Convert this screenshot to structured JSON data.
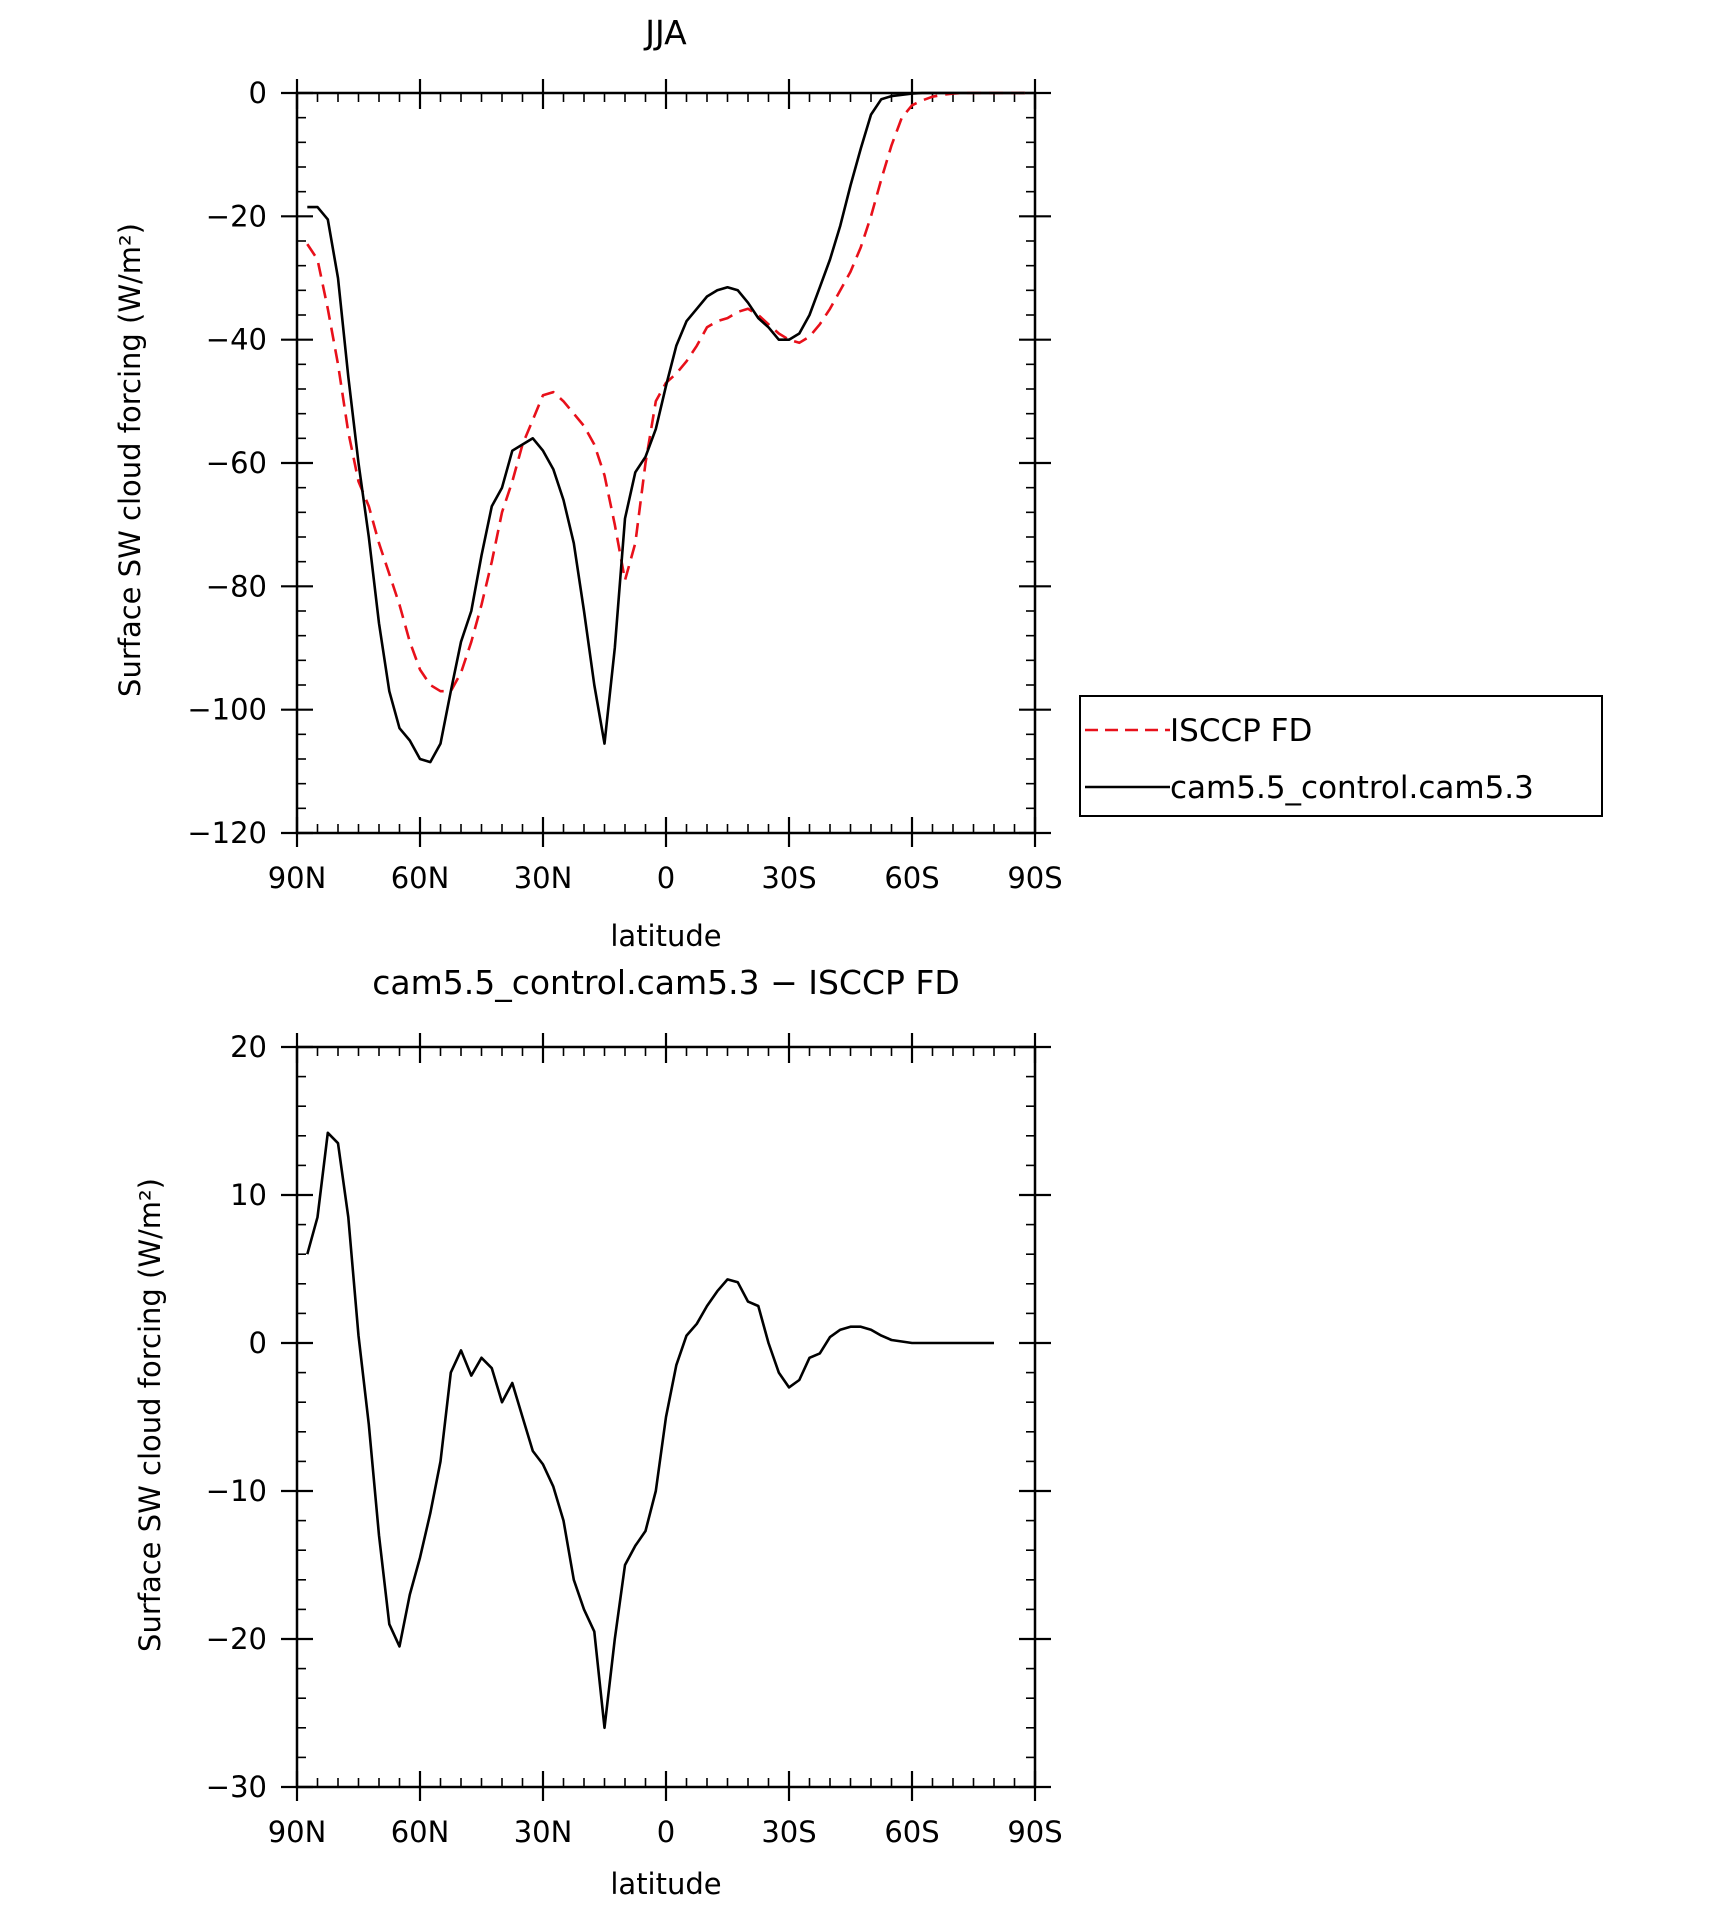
{
  "chart_data": [
    {
      "type": "line",
      "title": "JJA",
      "xlabel": "latitude",
      "ylabel": "Surface SW cloud forcing (W/m²)",
      "xlim": [
        -90,
        90
      ],
      "ylim": [
        -120,
        0
      ],
      "x_ticks": [
        {
          "value": -90,
          "label": "90N"
        },
        {
          "value": -60,
          "label": "60N"
        },
        {
          "value": -30,
          "label": "30N"
        },
        {
          "value": 0,
          "label": "0"
        },
        {
          "value": 30,
          "label": "30S"
        },
        {
          "value": 60,
          "label": "60S"
        },
        {
          "value": 90,
          "label": "90S"
        }
      ],
      "y_ticks": [
        {
          "value": 0,
          "label": "0"
        },
        {
          "value": -20,
          "label": "−20"
        },
        {
          "value": -40,
          "label": "−40"
        },
        {
          "value": -60,
          "label": "−60"
        },
        {
          "value": -80,
          "label": "−80"
        },
        {
          "value": -100,
          "label": "−100"
        },
        {
          "value": -120,
          "label": "−120"
        }
      ],
      "legend": "right",
      "series": [
        {
          "name": "ISCCP FD",
          "color": "#e8101a",
          "dash": "dashed",
          "points": [
            [
              -87.5,
              -24.5
            ],
            [
              -85,
              -27
            ],
            [
              -82.5,
              -35
            ],
            [
              -80,
              -44
            ],
            [
              -77.5,
              -55
            ],
            [
              -75,
              -63
            ],
            [
              -72.5,
              -67
            ],
            [
              -70,
              -73
            ],
            [
              -67.5,
              -78
            ],
            [
              -65,
              -83
            ],
            [
              -62.5,
              -89
            ],
            [
              -60,
              -93.5
            ],
            [
              -57.5,
              -96
            ],
            [
              -55,
              -97
            ],
            [
              -52.5,
              -97
            ],
            [
              -50,
              -94
            ],
            [
              -47.5,
              -89
            ],
            [
              -45,
              -83
            ],
            [
              -42.5,
              -76
            ],
            [
              -40,
              -68
            ],
            [
              -37.5,
              -63
            ],
            [
              -35,
              -57
            ],
            [
              -32.5,
              -53
            ],
            [
              -30,
              -49
            ],
            [
              -27.5,
              -48.5
            ],
            [
              -25,
              -50
            ],
            [
              -22.5,
              -52
            ],
            [
              -20,
              -54
            ],
            [
              -17.5,
              -57
            ],
            [
              -15,
              -62
            ],
            [
              -12.5,
              -70
            ],
            [
              -10,
              -79
            ],
            [
              -7.5,
              -73
            ],
            [
              -5,
              -60
            ],
            [
              -2.5,
              -50
            ],
            [
              0,
              -47
            ],
            [
              2.5,
              -45.5
            ],
            [
              5,
              -43.5
            ],
            [
              7.5,
              -41
            ],
            [
              10,
              -38
            ],
            [
              12.5,
              -37
            ],
            [
              15,
              -36.5
            ],
            [
              17.5,
              -35.5
            ],
            [
              20,
              -35
            ],
            [
              22.5,
              -36
            ],
            [
              25,
              -37.5
            ],
            [
              27.5,
              -39
            ],
            [
              30,
              -40
            ],
            [
              32.5,
              -40.5
            ],
            [
              35,
              -39.5
            ],
            [
              37.5,
              -37.5
            ],
            [
              40,
              -35
            ],
            [
              42.5,
              -32
            ],
            [
              45,
              -29
            ],
            [
              47.5,
              -25
            ],
            [
              50,
              -20
            ],
            [
              52.5,
              -14
            ],
            [
              55,
              -8.5
            ],
            [
              57.5,
              -4
            ],
            [
              60,
              -2
            ],
            [
              62.5,
              -1.2
            ],
            [
              65,
              -0.6
            ],
            [
              67.5,
              -0.3
            ],
            [
              70,
              -0.1
            ],
            [
              72.5,
              0
            ],
            [
              75,
              0
            ],
            [
              77.5,
              0
            ],
            [
              80,
              0
            ],
            [
              82.5,
              0
            ],
            [
              85,
              0
            ],
            [
              87.5,
              0
            ]
          ]
        },
        {
          "name": "cam5.5_control.cam5.3",
          "color": "#000000",
          "dash": "solid",
          "points": [
            [
              -87.5,
              -18.5
            ],
            [
              -85,
              -18.5
            ],
            [
              -82.5,
              -20.5
            ],
            [
              -80,
              -30
            ],
            [
              -77.5,
              -46
            ],
            [
              -75,
              -60
            ],
            [
              -72.5,
              -72
            ],
            [
              -70,
              -86
            ],
            [
              -67.5,
              -97
            ],
            [
              -65,
              -103
            ],
            [
              -62.5,
              -105
            ],
            [
              -60,
              -108
            ],
            [
              -57.5,
              -108.5
            ],
            [
              -55,
              -105.5
            ],
            [
              -52.5,
              -97
            ],
            [
              -50,
              -89
            ],
            [
              -47.5,
              -84
            ],
            [
              -45,
              -75
            ],
            [
              -42.5,
              -67
            ],
            [
              -40,
              -64
            ],
            [
              -37.5,
              -58
            ],
            [
              -35,
              -57
            ],
            [
              -32.5,
              -56
            ],
            [
              -30,
              -58
            ],
            [
              -27.5,
              -61
            ],
            [
              -25,
              -66
            ],
            [
              -22.5,
              -73
            ],
            [
              -20,
              -84
            ],
            [
              -17.5,
              -96
            ],
            [
              -15,
              -105.5
            ],
            [
              -12.5,
              -90
            ],
            [
              -10,
              -69
            ],
            [
              -7.5,
              -61.5
            ],
            [
              -5,
              -59
            ],
            [
              -2.5,
              -54.5
            ],
            [
              0,
              -47.5
            ],
            [
              2.5,
              -41
            ],
            [
              5,
              -37
            ],
            [
              7.5,
              -35
            ],
            [
              10,
              -33
            ],
            [
              12.5,
              -32
            ],
            [
              15,
              -31.5
            ],
            [
              17.5,
              -32
            ],
            [
              20,
              -34
            ],
            [
              22.5,
              -36.5
            ],
            [
              25,
              -38
            ],
            [
              27.5,
              -40
            ],
            [
              30,
              -40
            ],
            [
              32.5,
              -39
            ],
            [
              35,
              -36
            ],
            [
              37.5,
              -31.5
            ],
            [
              40,
              -27
            ],
            [
              42.5,
              -21.5
            ],
            [
              45,
              -15
            ],
            [
              47.5,
              -9
            ],
            [
              50,
              -3.5
            ],
            [
              52.5,
              -1
            ],
            [
              55,
              -0.5
            ],
            [
              57.5,
              -0.3
            ],
            [
              60,
              -0.1
            ],
            [
              62.5,
              0
            ],
            [
              65,
              0
            ],
            [
              67.5,
              0
            ],
            [
              70,
              0
            ],
            [
              72.5,
              0
            ],
            [
              75,
              0
            ],
            [
              77.5,
              0
            ],
            [
              80,
              0
            ],
            [
              82.5,
              0
            ],
            [
              85,
              0
            ],
            [
              87.5,
              0
            ]
          ]
        }
      ]
    },
    {
      "type": "line",
      "title": "cam5.5_control.cam5.3 − ISCCP FD",
      "xlabel": "latitude",
      "ylabel": "Surface SW cloud forcing (W/m²)",
      "xlim": [
        -90,
        90
      ],
      "ylim": [
        -30,
        20
      ],
      "x_ticks": [
        {
          "value": -90,
          "label": "90N"
        },
        {
          "value": -60,
          "label": "60N"
        },
        {
          "value": -30,
          "label": "30N"
        },
        {
          "value": 0,
          "label": "0"
        },
        {
          "value": 30,
          "label": "30S"
        },
        {
          "value": 60,
          "label": "60S"
        },
        {
          "value": 90,
          "label": "90S"
        }
      ],
      "y_ticks": [
        {
          "value": 20,
          "label": "20"
        },
        {
          "value": 10,
          "label": "10"
        },
        {
          "value": 0,
          "label": "0"
        },
        {
          "value": -10,
          "label": "−10"
        },
        {
          "value": -20,
          "label": "−20"
        },
        {
          "value": -30,
          "label": "−30"
        }
      ],
      "series": [
        {
          "color": "#000000",
          "dash": "solid",
          "points": [
            [
              -87.5,
              6
            ],
            [
              -85,
              8.5
            ],
            [
              -82.5,
              14.2
            ],
            [
              -80,
              13.5
            ],
            [
              -77.5,
              8.5
            ],
            [
              -75,
              0.5
            ],
            [
              -72.5,
              -5.5
            ],
            [
              -70,
              -13
            ],
            [
              -67.5,
              -19
            ],
            [
              -65,
              -20.5
            ],
            [
              -62.5,
              -17
            ],
            [
              -60,
              -14.5
            ],
            [
              -57.5,
              -11.5
            ],
            [
              -55,
              -8
            ],
            [
              -52.5,
              -2
            ],
            [
              -50,
              -0.5
            ],
            [
              -47.5,
              -2.2
            ],
            [
              -45,
              -1
            ],
            [
              -42.5,
              -1.7
            ],
            [
              -40,
              -4
            ],
            [
              -37.5,
              -2.7
            ],
            [
              -35,
              -5
            ],
            [
              -32.5,
              -7.3
            ],
            [
              -30,
              -8.2
            ],
            [
              -27.5,
              -9.7
            ],
            [
              -25,
              -12
            ],
            [
              -22.5,
              -16
            ],
            [
              -20,
              -18
            ],
            [
              -17.5,
              -19.5
            ],
            [
              -15,
              -26
            ],
            [
              -12.5,
              -20
            ],
            [
              -10,
              -15
            ],
            [
              -7.5,
              -13.7
            ],
            [
              -5,
              -12.7
            ],
            [
              -2.5,
              -10
            ],
            [
              0,
              -5
            ],
            [
              2.5,
              -1.5
            ],
            [
              5,
              0.5
            ],
            [
              7.5,
              1.3
            ],
            [
              10,
              2.5
            ],
            [
              12.5,
              3.5
            ],
            [
              15,
              4.3
            ],
            [
              17.5,
              4.1
            ],
            [
              20,
              2.8
            ],
            [
              22.5,
              2.5
            ],
            [
              25,
              0
            ],
            [
              27.5,
              -2
            ],
            [
              30,
              -3
            ],
            [
              32.5,
              -2.5
            ],
            [
              35,
              -1
            ],
            [
              37.5,
              -0.7
            ],
            [
              40,
              0.4
            ],
            [
              42.5,
              0.9
            ],
            [
              45,
              1.1
            ],
            [
              47.5,
              1.1
            ],
            [
              50,
              0.9
            ],
            [
              52.5,
              0.5
            ],
            [
              55,
              0.2
            ],
            [
              57.5,
              0.1
            ],
            [
              60,
              0
            ],
            [
              62.5,
              0
            ],
            [
              65,
              0
            ],
            [
              67.5,
              0
            ],
            [
              70,
              0
            ],
            [
              72.5,
              0
            ],
            [
              75,
              0
            ],
            [
              77.5,
              0
            ],
            [
              80,
              0
            ]
          ]
        }
      ]
    }
  ]
}
